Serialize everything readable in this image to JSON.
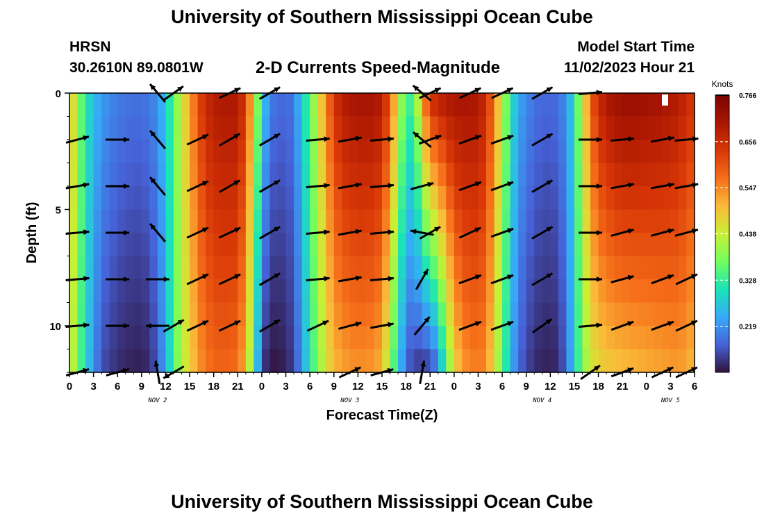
{
  "title": "University of Southern Mississippi Ocean Cube",
  "title_repeat": "University of Southern Mississippi Ocean Cube",
  "station": "HRSN",
  "latlon": "30.2610N  89.0801W",
  "subtitle": "2-D Currents Speed-Magnitude",
  "model_start_label": "Model Start Time",
  "model_start_value": "11/02/2023 Hour 21",
  "chart_data": {
    "type": "heatmap",
    "title": "2-D Currents Speed-Magnitude",
    "xlabel": "Forecast Time(Z)",
    "ylabel": "Depth (ft)",
    "x_hours": [
      0,
      3,
      6,
      9,
      12,
      15,
      18,
      21,
      24,
      27,
      30,
      33,
      36,
      39,
      42,
      45,
      48,
      51,
      54,
      57,
      60,
      63,
      66,
      69,
      72,
      75,
      78
    ],
    "xlim": [
      0,
      78
    ],
    "x_tick_labels": [
      "0",
      "3",
      "6",
      "9",
      "12",
      "15",
      "18",
      "21",
      "0",
      "3",
      "6",
      "9",
      "12",
      "15",
      "18",
      "21",
      "0",
      "3",
      "6",
      "9",
      "12",
      "15",
      "18",
      "21",
      "0",
      "3",
      "6"
    ],
    "day_labels": [
      {
        "hour": 11,
        "text": "NOV 2"
      },
      {
        "hour": 35,
        "text": "NOV 3"
      },
      {
        "hour": 59,
        "text": "NOV 4"
      },
      {
        "hour": 75,
        "text": "NOV 5"
      }
    ],
    "ylim": [
      0,
      12
    ],
    "y_ticks": [
      0,
      5,
      10
    ],
    "y_inverted": true,
    "colorbar": {
      "unit": "Knots",
      "min": 0.11,
      "max": 0.766,
      "ticks": [
        0.219,
        0.328,
        0.438,
        0.547,
        0.656,
        0.766
      ],
      "tick_labels": [
        "0.219",
        "0.328",
        "0.438",
        "0.547",
        "0.656",
        "0.766"
      ]
    },
    "speed_profile_surface": [
      [
        0,
        0.52
      ],
      [
        1,
        0.4
      ],
      [
        2,
        0.32
      ],
      [
        3,
        0.26
      ],
      [
        4,
        0.23
      ],
      [
        6,
        0.2
      ],
      [
        8,
        0.19
      ],
      [
        9,
        0.19
      ],
      [
        10,
        0.2
      ],
      [
        11,
        0.22
      ],
      [
        12,
        0.27
      ],
      [
        13,
        0.36
      ],
      [
        14,
        0.44
      ],
      [
        15,
        0.52
      ],
      [
        16,
        0.61
      ],
      [
        17,
        0.66
      ],
      [
        18,
        0.69
      ],
      [
        20,
        0.7
      ],
      [
        21,
        0.7
      ],
      [
        22,
        0.63
      ],
      [
        23,
        0.47
      ],
      [
        24,
        0.3
      ],
      [
        25,
        0.2
      ],
      [
        27,
        0.18
      ],
      [
        28,
        0.2
      ],
      [
        29,
        0.27
      ],
      [
        30,
        0.36
      ],
      [
        31,
        0.44
      ],
      [
        32,
        0.55
      ],
      [
        33,
        0.64
      ],
      [
        34,
        0.69
      ],
      [
        36,
        0.71
      ],
      [
        38,
        0.71
      ],
      [
        39,
        0.69
      ],
      [
        40,
        0.6
      ],
      [
        41,
        0.45
      ],
      [
        42,
        0.34
      ],
      [
        43,
        0.34
      ],
      [
        44,
        0.52
      ],
      [
        45,
        0.66
      ],
      [
        47,
        0.7
      ],
      [
        49,
        0.71
      ],
      [
        51,
        0.7
      ],
      [
        52,
        0.66
      ],
      [
        53,
        0.56
      ],
      [
        54,
        0.44
      ],
      [
        55,
        0.32
      ],
      [
        56,
        0.24
      ],
      [
        58,
        0.19
      ],
      [
        60,
        0.18
      ],
      [
        61,
        0.19
      ],
      [
        62,
        0.22
      ],
      [
        63,
        0.3
      ],
      [
        64,
        0.44
      ],
      [
        65,
        0.58
      ],
      [
        66,
        0.67
      ],
      [
        68,
        0.72
      ],
      [
        70,
        0.73
      ],
      [
        72,
        0.72
      ],
      [
        74,
        0.71
      ],
      [
        76,
        0.69
      ],
      [
        78,
        0.64
      ]
    ],
    "speed_profile_bottom": [
      [
        0,
        0.46
      ],
      [
        1,
        0.38
      ],
      [
        2,
        0.29
      ],
      [
        3,
        0.22
      ],
      [
        4,
        0.16
      ],
      [
        6,
        0.13
      ],
      [
        8,
        0.12
      ],
      [
        9,
        0.12
      ],
      [
        10,
        0.13
      ],
      [
        11,
        0.17
      ],
      [
        12,
        0.24
      ],
      [
        13,
        0.34
      ],
      [
        14,
        0.42
      ],
      [
        15,
        0.47
      ],
      [
        16,
        0.53
      ],
      [
        17,
        0.56
      ],
      [
        18,
        0.58
      ],
      [
        20,
        0.58
      ],
      [
        21,
        0.57
      ],
      [
        22,
        0.5
      ],
      [
        23,
        0.34
      ],
      [
        24,
        0.15
      ],
      [
        25,
        0.11
      ],
      [
        27,
        0.12
      ],
      [
        28,
        0.15
      ],
      [
        29,
        0.22
      ],
      [
        30,
        0.31
      ],
      [
        31,
        0.38
      ],
      [
        32,
        0.45
      ],
      [
        33,
        0.5
      ],
      [
        34,
        0.52
      ],
      [
        36,
        0.54
      ],
      [
        38,
        0.53
      ],
      [
        39,
        0.5
      ],
      [
        40,
        0.4
      ],
      [
        41,
        0.28
      ],
      [
        42,
        0.18
      ],
      [
        43,
        0.14
      ],
      [
        44,
        0.14
      ],
      [
        45,
        0.14
      ],
      [
        46,
        0.2
      ],
      [
        47,
        0.34
      ],
      [
        48,
        0.46
      ],
      [
        49,
        0.53
      ],
      [
        51,
        0.56
      ],
      [
        52,
        0.54
      ],
      [
        53,
        0.46
      ],
      [
        54,
        0.36
      ],
      [
        55,
        0.26
      ],
      [
        56,
        0.18
      ],
      [
        58,
        0.13
      ],
      [
        60,
        0.12
      ],
      [
        61,
        0.13
      ],
      [
        62,
        0.18
      ],
      [
        63,
        0.28
      ],
      [
        64,
        0.38
      ],
      [
        65,
        0.44
      ],
      [
        66,
        0.47
      ],
      [
        68,
        0.49
      ],
      [
        70,
        0.5
      ],
      [
        72,
        0.51
      ],
      [
        74,
        0.52
      ],
      [
        76,
        0.53
      ],
      [
        78,
        0.5
      ]
    ],
    "vector_depths_ft": [
      0,
      2,
      4,
      6,
      8,
      10,
      12
    ],
    "vector_columns": [
      {
        "hour": 1,
        "angles": [
          null,
          -15,
          -10,
          -5,
          -5,
          -5,
          -15
        ]
      },
      {
        "hour": 6,
        "angles": [
          null,
          0,
          0,
          0,
          0,
          0,
          -15
        ]
      },
      {
        "hour": 11,
        "angles": [
          -130,
          -130,
          -130,
          -130,
          0,
          180,
          -100
        ]
      },
      {
        "hour": 13,
        "angles": [
          -35,
          null,
          null,
          null,
          null,
          -30,
          150
        ]
      },
      {
        "hour": 16,
        "angles": [
          null,
          -25,
          -25,
          -25,
          -25,
          -25,
          null
        ]
      },
      {
        "hour": 20,
        "angles": [
          -25,
          -30,
          -30,
          -25,
          -25,
          -25,
          null
        ]
      },
      {
        "hour": 25,
        "angles": [
          -30,
          -30,
          -30,
          -30,
          -30,
          -30,
          null
        ]
      },
      {
        "hour": 31,
        "angles": [
          null,
          -5,
          -5,
          -5,
          -5,
          -25,
          null
        ]
      },
      {
        "hour": 35,
        "angles": [
          null,
          -10,
          -10,
          -10,
          -10,
          -15,
          -25
        ]
      },
      {
        "hour": 39,
        "angles": [
          null,
          -5,
          -5,
          -5,
          -5,
          -10,
          -15
        ]
      },
      {
        "hour": 44,
        "angles": [
          -140,
          -140,
          -15,
          -170,
          -60,
          -50,
          -80
        ]
      },
      {
        "hour": 45,
        "angles": [
          -25,
          -20,
          null,
          -30,
          null,
          null,
          null
        ]
      },
      {
        "hour": 50,
        "angles": [
          -25,
          -20,
          -20,
          -25,
          -20,
          -20,
          null
        ]
      },
      {
        "hour": 54,
        "angles": [
          -25,
          -20,
          -20,
          -20,
          -20,
          -20,
          null
        ]
      },
      {
        "hour": 59,
        "angles": [
          -30,
          -30,
          -30,
          -30,
          -30,
          -35,
          null
        ]
      },
      {
        "hour": 65,
        "angles": [
          -5,
          0,
          0,
          0,
          0,
          -5,
          -35
        ]
      },
      {
        "hour": 69,
        "angles": [
          null,
          -5,
          -10,
          -15,
          -15,
          -20,
          -20
        ]
      },
      {
        "hour": 74,
        "angles": [
          null,
          -10,
          -10,
          -15,
          -20,
          -20,
          -25
        ]
      },
      {
        "hour": 77,
        "angles": [
          null,
          -5,
          -10,
          -15,
          -25,
          -25,
          -25
        ]
      }
    ]
  }
}
